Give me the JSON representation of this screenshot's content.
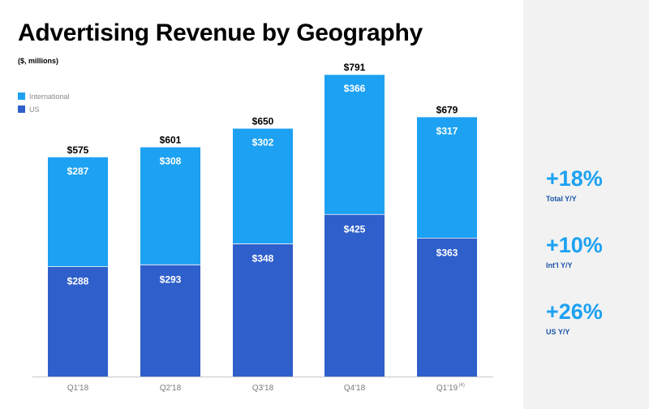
{
  "title": "Advertising Revenue by Geography",
  "subtitle": "($, millions)",
  "colors": {
    "international": "#1da1f2",
    "us": "#2f5fcb",
    "axis": "#c8c8c8",
    "metric": "#1da1f2",
    "metric_label": "#1a55a8",
    "side_panel": "#f2f2f2"
  },
  "legend": [
    {
      "label": "International",
      "color": "#1da1f2"
    },
    {
      "label": "US",
      "color": "#2f5fcb"
    }
  ],
  "chart_data": {
    "type": "bar",
    "stacked": true,
    "title": "Advertising Revenue by Geography",
    "ylabel": "($, millions)",
    "xlabel": "",
    "ylim": [
      0,
      800
    ],
    "categories": [
      "Q1'18",
      "Q2'18",
      "Q3'18",
      "Q4'18",
      "Q1'19"
    ],
    "category_footnotes": [
      "",
      "",
      "",
      "",
      "(4)"
    ],
    "series": [
      {
        "name": "US",
        "color": "#2f5fcb",
        "values": [
          288,
          293,
          348,
          425,
          363
        ],
        "labels": [
          "$288",
          "$293",
          "$348",
          "$425",
          "$363"
        ]
      },
      {
        "name": "International",
        "color": "#1da1f2",
        "values": [
          287,
          308,
          302,
          366,
          317
        ],
        "labels": [
          "$287",
          "$308",
          "$302",
          "$366",
          "$317"
        ]
      }
    ],
    "totals": [
      575,
      601,
      650,
      791,
      679
    ],
    "total_labels": [
      "$575",
      "$601",
      "$650",
      "$791",
      "$679"
    ],
    "grid": false,
    "legend_position": "top-left"
  },
  "metrics": [
    {
      "value": "+18%",
      "label": "Total Y/Y"
    },
    {
      "value": "+10%",
      "label": "Int'l Y/Y"
    },
    {
      "value": "+26%",
      "label": "US Y/Y"
    }
  ]
}
